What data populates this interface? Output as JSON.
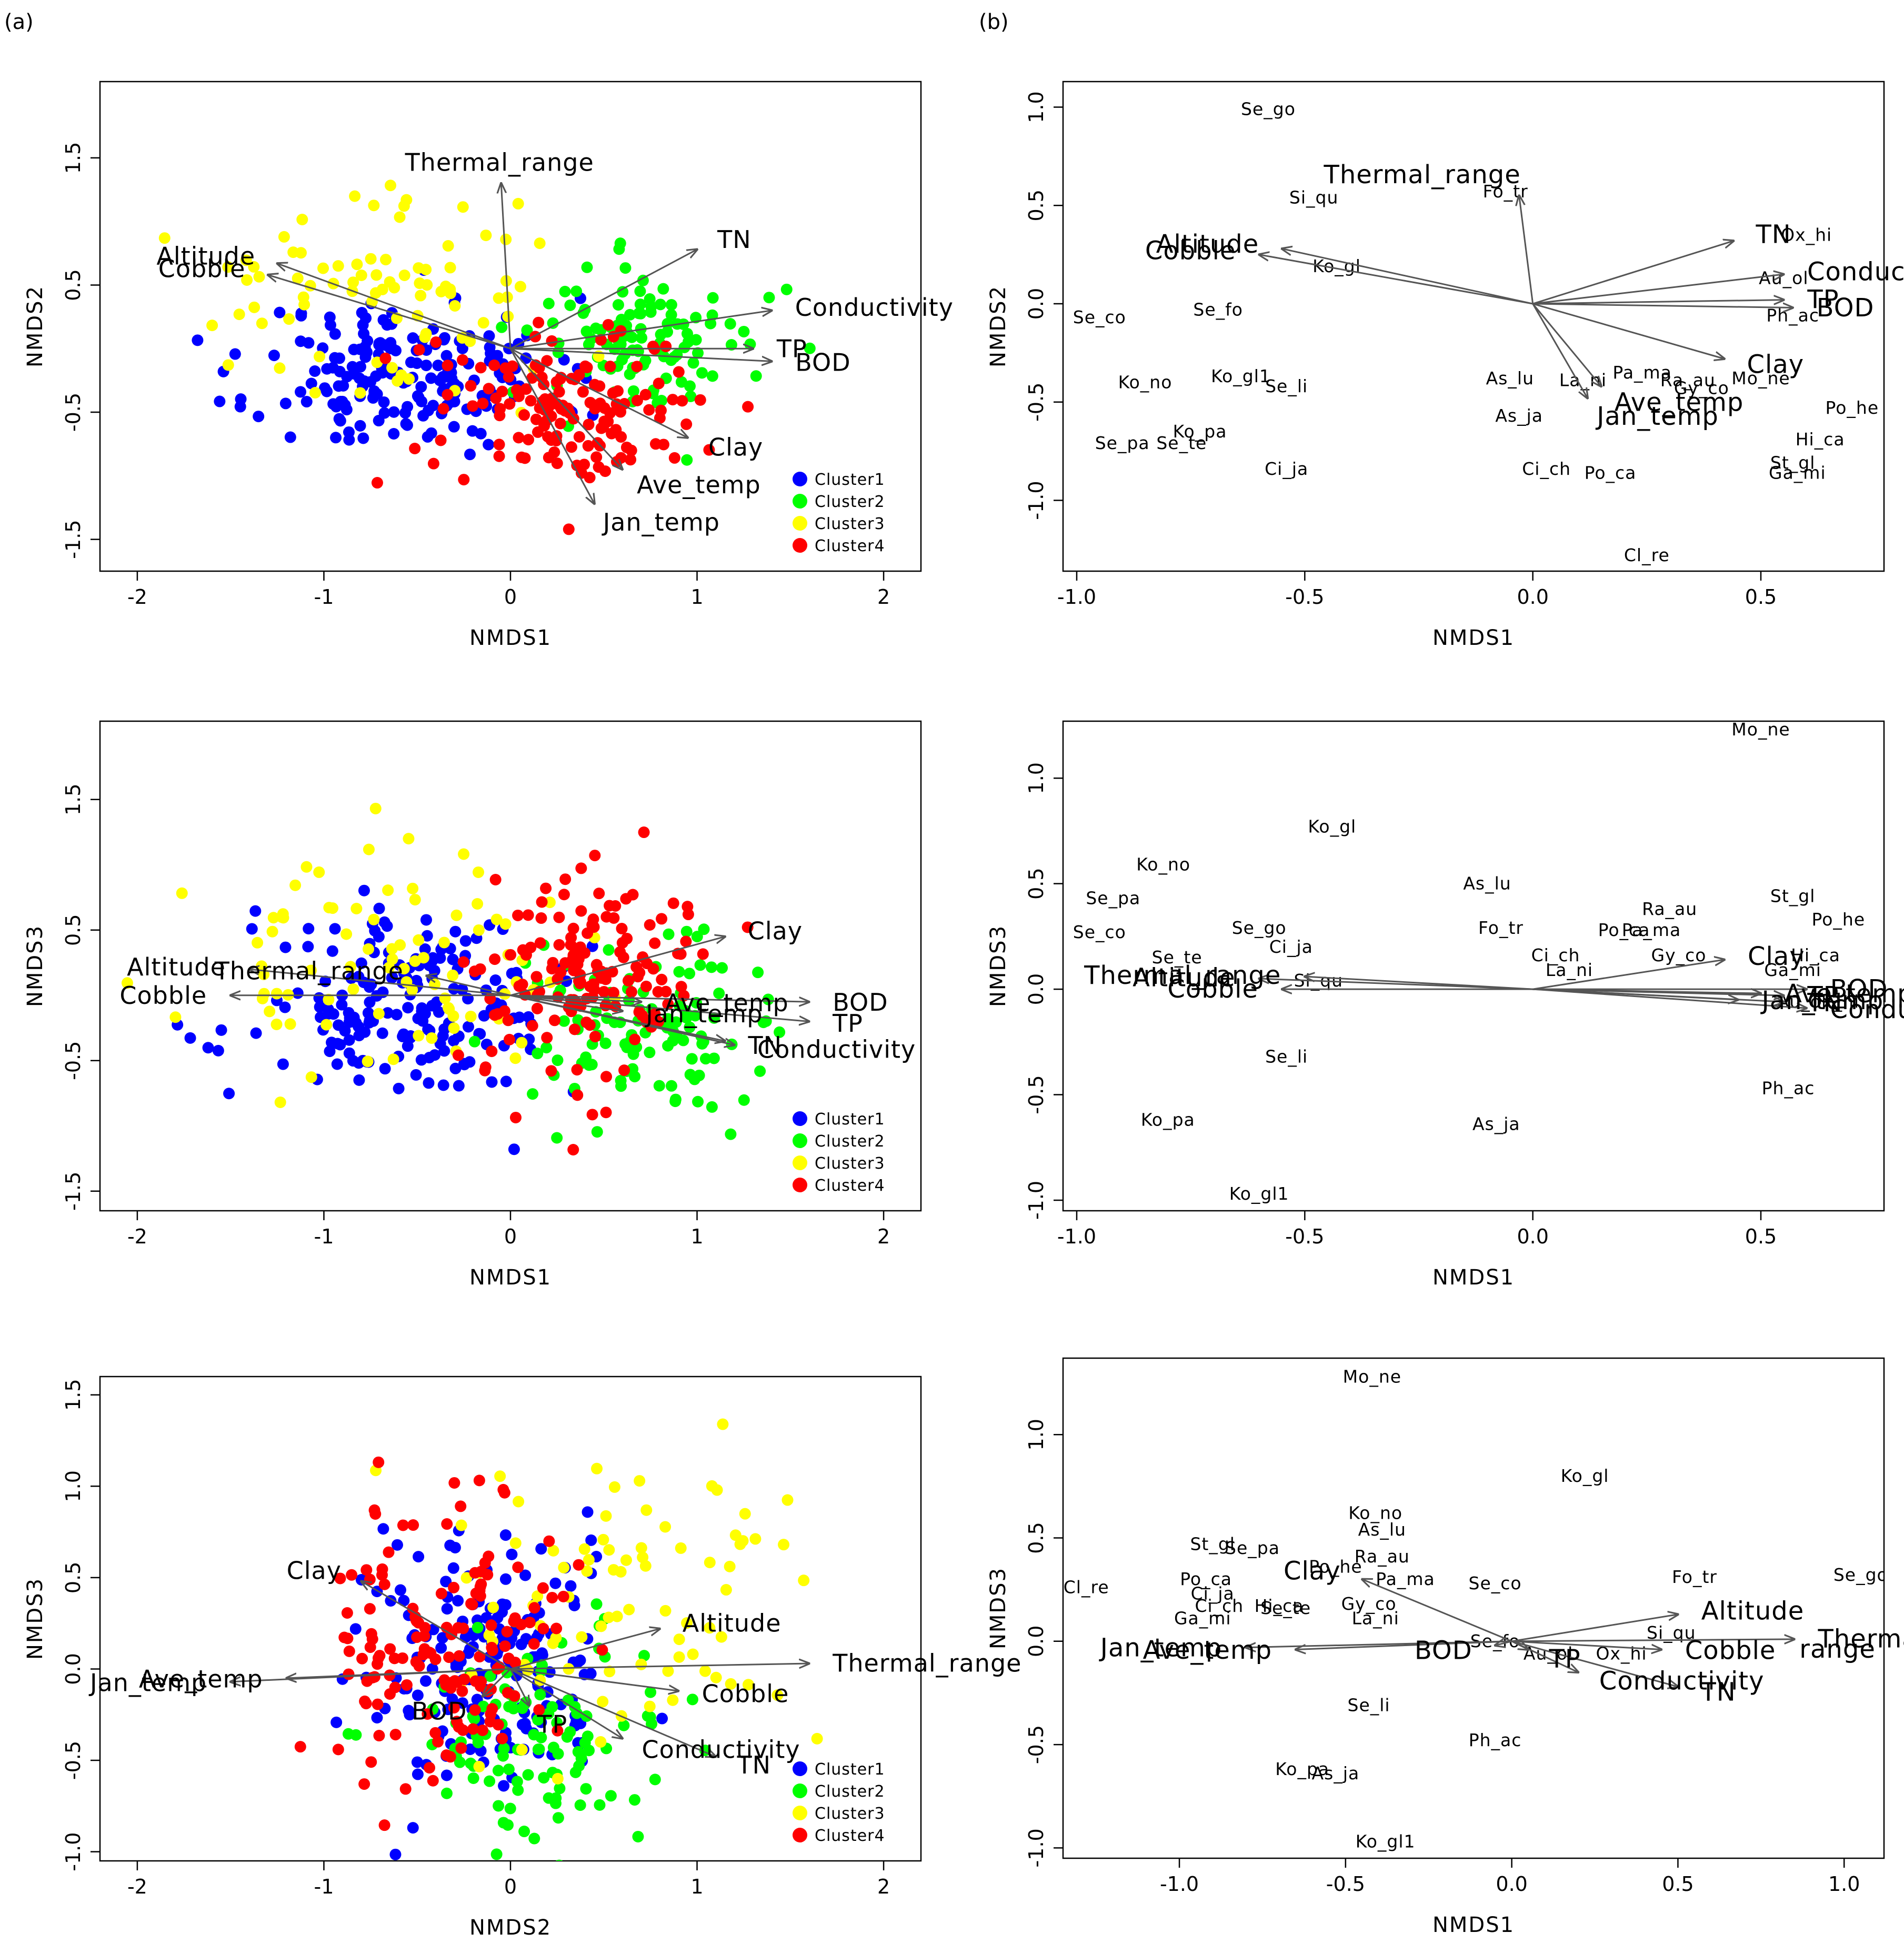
{
  "panel_labels": {
    "a": "(a)",
    "b": "(b)"
  },
  "colors": {
    "cluster1": "#0000ff",
    "cluster2": "#00ff00",
    "cluster3": "#ffff00",
    "cluster4": "#ff0000",
    "arrow": "#555555"
  },
  "chart_data": [
    {
      "id": "a1",
      "type": "scatter",
      "panel": "a",
      "xlabel": "NMDS1",
      "ylabel": "NMDS2",
      "xlim": [
        -2.2,
        2.2
      ],
      "ylim": [
        -1.75,
        2.1
      ],
      "xticks": [
        -2,
        -1,
        0,
        1,
        2
      ],
      "yticks": [
        -1.5,
        -0.5,
        0.5,
        1.5
      ],
      "legend": [
        "Cluster1",
        "Cluster2",
        "Cluster3",
        "Cluster4"
      ],
      "clusters": [
        {
          "name": "Cluster1",
          "cx": -0.55,
          "cy": -0.2,
          "sx": 0.4,
          "sy": 0.3,
          "n": 190,
          "seed": 11
        },
        {
          "name": "Cluster2",
          "cx": 0.75,
          "cy": 0.05,
          "sx": 0.3,
          "sy": 0.3,
          "n": 110,
          "seed": 12
        },
        {
          "name": "Cluster3",
          "cx": -0.7,
          "cy": 0.45,
          "sx": 0.5,
          "sy": 0.4,
          "n": 85,
          "seed": 13
        },
        {
          "name": "Cluster4",
          "cx": 0.35,
          "cy": -0.45,
          "sx": 0.35,
          "sy": 0.3,
          "n": 150,
          "seed": 14
        }
      ],
      "vectors": [
        {
          "label": "Thermal_range",
          "x": -0.05,
          "y": 1.3
        },
        {
          "label": "TN",
          "x": 1.0,
          "y": 0.78
        },
        {
          "label": "Conductivity",
          "x": 1.4,
          "y": 0.3
        },
        {
          "label": "TP",
          "x": 1.3,
          "y": 0.0
        },
        {
          "label": "BOD",
          "x": 1.4,
          "y": -0.1
        },
        {
          "label": "Clay",
          "x": 0.95,
          "y": -0.7
        },
        {
          "label": "Ave_temp",
          "x": 0.6,
          "y": -0.95
        },
        {
          "label": "Jan_temp",
          "x": 0.45,
          "y": -1.22
        },
        {
          "label": "Altitude",
          "x": -1.25,
          "y": 0.67
        },
        {
          "label": "Cobble",
          "x": -1.3,
          "y": 0.58
        }
      ]
    },
    {
      "id": "a2",
      "type": "scatter",
      "panel": "a",
      "xlabel": "NMDS1",
      "ylabel": "NMDS3",
      "xlim": [
        -2.2,
        2.2
      ],
      "ylim": [
        -1.65,
        2.1
      ],
      "xticks": [
        -2,
        -1,
        0,
        1,
        2
      ],
      "yticks": [
        -1.5,
        -0.5,
        0.5,
        1.5
      ],
      "legend": [
        "Cluster1",
        "Cluster2",
        "Cluster3",
        "Cluster4"
      ],
      "clusters": [
        {
          "name": "Cluster1",
          "cx": -0.55,
          "cy": -0.1,
          "sx": 0.4,
          "sy": 0.35,
          "n": 190,
          "seed": 21
        },
        {
          "name": "Cluster2",
          "cx": 0.7,
          "cy": -0.25,
          "sx": 0.3,
          "sy": 0.3,
          "n": 110,
          "seed": 22
        },
        {
          "name": "Cluster3",
          "cx": -0.7,
          "cy": 0.2,
          "sx": 0.5,
          "sy": 0.4,
          "n": 85,
          "seed": 23
        },
        {
          "name": "Cluster4",
          "cx": 0.35,
          "cy": 0.15,
          "sx": 0.3,
          "sy": 0.45,
          "n": 150,
          "seed": 24
        }
      ],
      "vectors": [
        {
          "label": "Altitude",
          "x": -1.4,
          "y": 0.2
        },
        {
          "label": "Cobble",
          "x": -1.5,
          "y": 0.0
        },
        {
          "label": "Thermal_range",
          "x": -0.45,
          "y": 0.15
        },
        {
          "label": "Clay",
          "x": 1.15,
          "y": 0.45
        },
        {
          "label": "BOD",
          "x": 1.6,
          "y": -0.05
        },
        {
          "label": "TP",
          "x": 1.6,
          "y": -0.2
        },
        {
          "label": "Ave_temp",
          "x": 0.7,
          "y": -0.05
        },
        {
          "label": "Jan_temp",
          "x": 0.6,
          "y": -0.12
        },
        {
          "label": "Conductivity",
          "x": 1.2,
          "y": -0.38
        },
        {
          "label": "TN",
          "x": 1.15,
          "y": -0.35
        }
      ]
    },
    {
      "id": "a3",
      "type": "scatter",
      "panel": "a",
      "xlabel": "NMDS2",
      "ylabel": "NMDS3",
      "xlim": [
        -2.2,
        2.2
      ],
      "ylim": [
        -1.05,
        1.6
      ],
      "xticks": [
        -2,
        -1,
        0,
        1,
        2
      ],
      "yticks": [
        -1.0,
        -0.5,
        0.0,
        0.5,
        1.0,
        1.5
      ],
      "legend": [
        "Cluster1",
        "Cluster2",
        "Cluster3",
        "Cluster4"
      ],
      "clusters": [
        {
          "name": "Cluster1",
          "cx": -0.15,
          "cy": 0.0,
          "sx": 0.35,
          "sy": 0.35,
          "n": 190,
          "seed": 31
        },
        {
          "name": "Cluster2",
          "cx": 0.1,
          "cy": -0.35,
          "sx": 0.35,
          "sy": 0.3,
          "n": 110,
          "seed": 32
        },
        {
          "name": "Cluster3",
          "cx": 0.6,
          "cy": 0.3,
          "sx": 0.45,
          "sy": 0.4,
          "n": 85,
          "seed": 33
        },
        {
          "name": "Cluster4",
          "cx": -0.35,
          "cy": 0.1,
          "sx": 0.35,
          "sy": 0.4,
          "n": 150,
          "seed": 34
        }
      ],
      "vectors": [
        {
          "label": "Clay",
          "x": -0.8,
          "y": 0.48
        },
        {
          "label": "Jan_temp",
          "x": -1.5,
          "y": -0.07
        },
        {
          "label": "Ave_temp",
          "x": -1.2,
          "y": -0.05
        },
        {
          "label": "Altitude",
          "x": 0.8,
          "y": 0.22
        },
        {
          "label": "Thermal_range",
          "x": 1.6,
          "y": 0.03
        },
        {
          "label": "Cobble",
          "x": 0.9,
          "y": -0.12
        },
        {
          "label": "TN",
          "x": 1.1,
          "y": -0.48
        },
        {
          "label": "Conductivity",
          "x": 0.6,
          "y": -0.38
        },
        {
          "label": "BOD",
          "x": -0.15,
          "y": -0.15
        },
        {
          "label": "TP",
          "x": 0.1,
          "y": -0.2
        }
      ]
    },
    {
      "id": "b1",
      "type": "scatter",
      "panel": "b",
      "xlabel": "NMDS1",
      "ylabel": "NMDS2",
      "xlim": [
        -1.03,
        0.77
      ],
      "ylim": [
        -1.36,
        1.13
      ],
      "xticks": [
        -1.0,
        -0.5,
        0.0,
        0.5
      ],
      "yticks": [
        -1.0,
        -0.5,
        0.0,
        0.5,
        1.0
      ],
      "vectors": [
        {
          "label": "Thermal_range",
          "x": -0.03,
          "y": 0.55
        },
        {
          "label": "Altitude",
          "x": -0.55,
          "y": 0.28
        },
        {
          "label": "Cobble",
          "x": -0.6,
          "y": 0.25
        },
        {
          "label": "TN",
          "x": 0.44,
          "y": 0.32
        },
        {
          "label": "Conductivity",
          "x": 0.55,
          "y": 0.15
        },
        {
          "label": "TP",
          "x": 0.55,
          "y": 0.02
        },
        {
          "label": "BOD",
          "x": 0.57,
          "y": -0.02
        },
        {
          "label": "Clay",
          "x": 0.42,
          "y": -0.28
        },
        {
          "label": "Ave_temp",
          "x": 0.15,
          "y": -0.42
        },
        {
          "label": "Jan_temp",
          "x": 0.12,
          "y": -0.48
        }
      ],
      "species": [
        {
          "label": "Se_go",
          "x": -0.58,
          "y": 0.99
        },
        {
          "label": "Fo_tr",
          "x": -0.06,
          "y": 0.57
        },
        {
          "label": "Si_qu",
          "x": -0.48,
          "y": 0.54
        },
        {
          "label": "Ko_gl",
          "x": -0.43,
          "y": 0.19
        },
        {
          "label": "Ox_hi",
          "x": 0.6,
          "y": 0.35
        },
        {
          "label": "Au_ol",
          "x": 0.55,
          "y": 0.13
        },
        {
          "label": "Ph_ac",
          "x": 0.57,
          "y": -0.06
        },
        {
          "label": "Se_co",
          "x": -0.95,
          "y": -0.07
        },
        {
          "label": "Se_fo",
          "x": -0.69,
          "y": -0.03
        },
        {
          "label": "Ko_no",
          "x": -0.85,
          "y": -0.4
        },
        {
          "label": "Ko_gl1",
          "x": -0.64,
          "y": -0.37
        },
        {
          "label": "Se_li",
          "x": -0.54,
          "y": -0.42
        },
        {
          "label": "As_lu",
          "x": -0.05,
          "y": -0.38
        },
        {
          "label": "La_ni",
          "x": 0.11,
          "y": -0.39
        },
        {
          "label": "Pa_ma",
          "x": 0.24,
          "y": -0.35
        },
        {
          "label": "Ra_au",
          "x": 0.34,
          "y": -0.39
        },
        {
          "label": "Gy_co",
          "x": 0.37,
          "y": -0.43
        },
        {
          "label": "Mo_ne",
          "x": 0.5,
          "y": -0.38
        },
        {
          "label": "As_ja",
          "x": -0.03,
          "y": -0.57
        },
        {
          "label": "Po_he",
          "x": 0.7,
          "y": -0.53
        },
        {
          "label": "Ko_pa",
          "x": -0.73,
          "y": -0.65
        },
        {
          "label": "Se_pa",
          "x": -0.9,
          "y": -0.71
        },
        {
          "label": "Se_te",
          "x": -0.77,
          "y": -0.71
        },
        {
          "label": "Ci_ja",
          "x": -0.54,
          "y": -0.84
        },
        {
          "label": "Ci_ch",
          "x": 0.03,
          "y": -0.84
        },
        {
          "label": "Po_ca",
          "x": 0.17,
          "y": -0.86
        },
        {
          "label": "Hi_ca",
          "x": 0.63,
          "y": -0.69
        },
        {
          "label": "St_gl",
          "x": 0.57,
          "y": -0.81
        },
        {
          "label": "Ga_mi",
          "x": 0.58,
          "y": -0.86
        },
        {
          "label": "Cl_re",
          "x": 0.25,
          "y": -1.28
        }
      ]
    },
    {
      "id": "b2",
      "type": "scatter",
      "panel": "b",
      "xlabel": "NMDS1",
      "ylabel": "NMDS3",
      "xlim": [
        -1.03,
        0.77
      ],
      "ylim": [
        -1.05,
        1.27
      ],
      "xticks": [
        -1.0,
        -0.5,
        0.0,
        0.5
      ],
      "yticks": [
        -1.0,
        -0.5,
        0.0,
        0.5,
        1.0
      ],
      "vectors": [
        {
          "label": "Altitude",
          "x": -0.6,
          "y": 0.05
        },
        {
          "label": "Cobble",
          "x": -0.55,
          "y": 0.0
        },
        {
          "label": "Thermal_range",
          "x": -0.5,
          "y": 0.06
        },
        {
          "label": "Clay",
          "x": 0.42,
          "y": 0.14
        },
        {
          "label": "Ave_temp",
          "x": 0.5,
          "y": -0.02
        },
        {
          "label": "Jan_temp",
          "x": 0.45,
          "y": -0.05
        },
        {
          "label": "TP",
          "x": 0.55,
          "y": -0.03
        },
        {
          "label": "BOD",
          "x": 0.6,
          "y": 0.0
        },
        {
          "label": "TN",
          "x": 0.55,
          "y": -0.06
        },
        {
          "label": "Conductivity",
          "x": 0.6,
          "y": -0.09
        }
      ],
      "species": [
        {
          "label": "Mo_ne",
          "x": 0.5,
          "y": 1.23
        },
        {
          "label": "Ko_gl",
          "x": -0.44,
          "y": 0.77
        },
        {
          "label": "Ko_no",
          "x": -0.81,
          "y": 0.59
        },
        {
          "label": "As_lu",
          "x": -0.1,
          "y": 0.5
        },
        {
          "label": "Se_pa",
          "x": -0.92,
          "y": 0.43
        },
        {
          "label": "St_gl",
          "x": 0.57,
          "y": 0.44
        },
        {
          "label": "Ra_au",
          "x": 0.3,
          "y": 0.38
        },
        {
          "label": "Po_he",
          "x": 0.67,
          "y": 0.33
        },
        {
          "label": "Se_co",
          "x": -0.95,
          "y": 0.27
        },
        {
          "label": "Se_go",
          "x": -0.6,
          "y": 0.29
        },
        {
          "label": "Fo_tr",
          "x": -0.07,
          "y": 0.29
        },
        {
          "label": "Po_ca",
          "x": 0.2,
          "y": 0.28
        },
        {
          "label": "Pa_ma",
          "x": 0.26,
          "y": 0.28
        },
        {
          "label": "Ci_ja",
          "x": -0.53,
          "y": 0.2
        },
        {
          "label": "Ci_ch",
          "x": 0.05,
          "y": 0.16
        },
        {
          "label": "Gy_co",
          "x": 0.32,
          "y": 0.16
        },
        {
          "label": "Hi_ca",
          "x": 0.62,
          "y": 0.16
        },
        {
          "label": "Se_te",
          "x": -0.78,
          "y": 0.15
        },
        {
          "label": "La_ni",
          "x": 0.08,
          "y": 0.09
        },
        {
          "label": "Ga_mi",
          "x": 0.57,
          "y": 0.09
        },
        {
          "label": "Si_qu",
          "x": -0.47,
          "y": 0.04
        },
        {
          "label": "Au_ol",
          "x": 0.59,
          "y": -0.06
        },
        {
          "label": "Ox_hi",
          "x": 0.66,
          "y": -0.06
        },
        {
          "label": "Se_li",
          "x": -0.54,
          "y": -0.32
        },
        {
          "label": "Ph_ac",
          "x": 0.56,
          "y": -0.47
        },
        {
          "label": "Ko_pa",
          "x": -0.8,
          "y": -0.62
        },
        {
          "label": "As_ja",
          "x": -0.08,
          "y": -0.64
        },
        {
          "label": "Ko_gl1",
          "x": -0.6,
          "y": -0.97
        }
      ]
    },
    {
      "id": "b3",
      "type": "scatter",
      "panel": "b",
      "xlabel": "NMDS1",
      "ylabel": "NMDS3",
      "xlim": [
        -1.35,
        1.12
      ],
      "ylim": [
        -1.05,
        1.37
      ],
      "xticks": [
        -1.0,
        -0.5,
        0.0,
        0.5,
        1.0
      ],
      "yticks": [
        -1.0,
        -0.5,
        0.0,
        0.5,
        1.0
      ],
      "vectors": [
        {
          "label": "Clay",
          "x": -0.45,
          "y": 0.3
        },
        {
          "label": "Jan_temp",
          "x": -0.8,
          "y": -0.03
        },
        {
          "label": "Ave_temp",
          "x": -0.65,
          "y": -0.04
        },
        {
          "label": "BOD",
          "x": -0.05,
          "y": -0.02
        },
        {
          "label": "TP",
          "x": 0.05,
          "y": -0.04
        },
        {
          "label": "Conductivity",
          "x": 0.2,
          "y": -0.15
        },
        {
          "label": "Altitude",
          "x": 0.5,
          "y": 0.13
        },
        {
          "label": "Thermal",
          "x": 0.85,
          "y": 0.01
        },
        {
          "label": "Cobble",
          "x": 0.45,
          "y": -0.04
        },
        {
          "label": "TN",
          "x": 0.5,
          "y": -0.22
        }
      ],
      "extra_labels": [
        {
          "label": "range",
          "x": 0.98,
          "y": -0.08
        }
      ],
      "species": [
        {
          "label": "Mo_ne",
          "x": -0.42,
          "y": 1.28
        },
        {
          "label": "Ko_gl",
          "x": 0.22,
          "y": 0.8
        },
        {
          "label": "Ko_no",
          "x": -0.41,
          "y": 0.62
        },
        {
          "label": "As_lu",
          "x": -0.39,
          "y": 0.54
        },
        {
          "label": "Ra_au",
          "x": -0.39,
          "y": 0.41
        },
        {
          "label": "St_gl",
          "x": -0.9,
          "y": 0.47
        },
        {
          "label": "Se_pa",
          "x": -0.78,
          "y": 0.45
        },
        {
          "label": "Po_he",
          "x": -0.53,
          "y": 0.36
        },
        {
          "label": "Pa_ma",
          "x": -0.32,
          "y": 0.3
        },
        {
          "label": "Se_co",
          "x": -0.05,
          "y": 0.28
        },
        {
          "label": "Fo_tr",
          "x": 0.55,
          "y": 0.31
        },
        {
          "label": "Se_go",
          "x": 1.05,
          "y": 0.32
        },
        {
          "label": "Cl_re",
          "x": -1.28,
          "y": 0.26
        },
        {
          "label": "Po_ca",
          "x": -0.92,
          "y": 0.3
        },
        {
          "label": "Ci_ja",
          "x": -0.9,
          "y": 0.23
        },
        {
          "label": "Ci_ch",
          "x": -0.88,
          "y": 0.17
        },
        {
          "label": "Hi_ca",
          "x": -0.7,
          "y": 0.17
        },
        {
          "label": "Se_te",
          "x": -0.68,
          "y": 0.16
        },
        {
          "label": "Ga_mi",
          "x": -0.93,
          "y": 0.11
        },
        {
          "label": "Gy_co",
          "x": -0.43,
          "y": 0.18
        },
        {
          "label": "La_ni",
          "x": -0.41,
          "y": 0.11
        },
        {
          "label": "Se_fo",
          "x": -0.05,
          "y": 0.0
        },
        {
          "label": "Si_qu",
          "x": 0.48,
          "y": 0.04
        },
        {
          "label": "Au_ol",
          "x": 0.11,
          "y": -0.06
        },
        {
          "label": "Ox_hi",
          "x": 0.33,
          "y": -0.06
        },
        {
          "label": "Se_li",
          "x": -0.43,
          "y": -0.31
        },
        {
          "label": "Ph_ac",
          "x": -0.05,
          "y": -0.48
        },
        {
          "label": "Ko_pa",
          "x": -0.63,
          "y": -0.62
        },
        {
          "label": "As_ja",
          "x": -0.53,
          "y": -0.64
        },
        {
          "label": "Ko_gl1",
          "x": -0.38,
          "y": -0.97
        }
      ]
    }
  ]
}
